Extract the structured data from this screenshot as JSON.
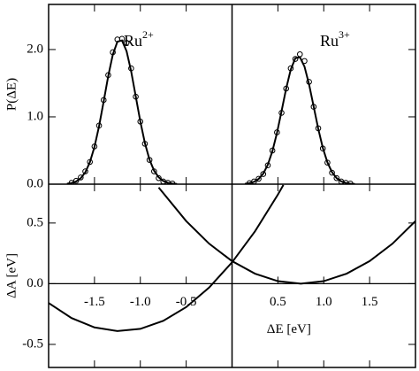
{
  "chart_data": [
    {
      "type": "line",
      "ylabel": "P(ΔE)",
      "color": "#000",
      "xlim": [
        -2,
        2
      ],
      "ylim": [
        0,
        2.67
      ],
      "yticks": [
        {
          "value": 0,
          "label": "0.0"
        },
        {
          "value": 1,
          "label": "1.0"
        },
        {
          "value": 2,
          "label": "2.0"
        }
      ],
      "annotations": [
        {
          "text": "Ru",
          "superscript": "2+"
        },
        {
          "text": "Ru",
          "superscript": "3+"
        }
      ],
      "series": [
        {
          "type": "line",
          "x": [
            -1.8,
            -1.75,
            -1.7,
            -1.65,
            -1.6,
            -1.55,
            -1.5,
            -1.45,
            -1.4,
            -1.35,
            -1.3,
            -1.25,
            -1.2,
            -1.15,
            -1.1,
            -1.05,
            -1.0,
            -0.95,
            -0.9,
            -0.85,
            -0.8,
            -0.75,
            -0.7,
            -0.65,
            -0.6
          ],
          "values": [
            0.006,
            0.017,
            0.04,
            0.088,
            0.176,
            0.327,
            0.554,
            0.861,
            1.227,
            1.606,
            1.925,
            2.117,
            2.135,
            1.976,
            1.676,
            1.304,
            0.931,
            0.609,
            0.365,
            0.201,
            0.102,
            0.047,
            0.02,
            0.008,
            0.003
          ]
        },
        {
          "type": "scatter",
          "x": [
            -1.75,
            -1.7,
            -1.65,
            -1.6,
            -1.55,
            -1.5,
            -1.45,
            -1.4,
            -1.35,
            -1.3,
            -1.25,
            -1.2,
            -1.15,
            -1.1,
            -1.05,
            -1.0,
            -0.95,
            -0.9,
            -0.85,
            -0.8,
            -0.75,
            -0.7,
            -0.65
          ],
          "values": [
            0.02,
            0.05,
            0.1,
            0.19,
            0.33,
            0.56,
            0.87,
            1.25,
            1.62,
            1.96,
            2.15,
            2.16,
            2.1,
            1.72,
            1.3,
            0.93,
            0.6,
            0.36,
            0.19,
            0.09,
            0.04,
            0.02,
            0.01
          ]
        },
        {
          "type": "line",
          "x": [
            0.14,
            0.19,
            0.24,
            0.29,
            0.34,
            0.39,
            0.44,
            0.49,
            0.54,
            0.59,
            0.64,
            0.69,
            0.74,
            0.79,
            0.84,
            0.89,
            0.94,
            0.99,
            1.04,
            1.09,
            1.14,
            1.19,
            1.24,
            1.29,
            1.34
          ],
          "values": [
            0.005,
            0.015,
            0.035,
            0.078,
            0.156,
            0.289,
            0.49,
            0.761,
            1.085,
            1.42,
            1.702,
            1.871,
            1.887,
            1.747,
            1.482,
            1.153,
            0.823,
            0.538,
            0.323,
            0.178,
            0.09,
            0.042,
            0.018,
            0.007,
            0.003
          ]
        },
        {
          "type": "scatter",
          "x": [
            0.19,
            0.24,
            0.29,
            0.34,
            0.39,
            0.44,
            0.49,
            0.54,
            0.59,
            0.64,
            0.69,
            0.74,
            0.79,
            0.84,
            0.89,
            0.94,
            0.99,
            1.04,
            1.09,
            1.14,
            1.19,
            1.24,
            1.29
          ],
          "values": [
            0.015,
            0.04,
            0.08,
            0.15,
            0.28,
            0.5,
            0.77,
            1.06,
            1.42,
            1.72,
            1.86,
            1.93,
            1.83,
            1.52,
            1.15,
            0.83,
            0.53,
            0.32,
            0.17,
            0.09,
            0.04,
            0.02,
            0.01
          ]
        }
      ]
    },
    {
      "type": "line",
      "xlabel": "ΔE [eV]",
      "ylabel": "ΔA [eV]",
      "color": "#000",
      "xlim": [
        -2,
        2
      ],
      "ylim": [
        -0.69,
        0.82
      ],
      "xticks": [
        -1.5,
        {
          "value": -1,
          "label": "-1.0"
        },
        -0.5,
        0.5,
        {
          "value": 1,
          "label": "1.0"
        },
        1.5
      ],
      "yticks": [
        -0.5,
        {
          "value": 0,
          "label": "0.0"
        },
        0.5
      ],
      "series": [
        {
          "type": "line",
          "x": [
            -2,
            -1.75,
            -1.5,
            -1.25,
            -1,
            -0.75,
            -0.5,
            -0.25,
            0,
            0.25,
            0.5,
            0.56
          ],
          "values": [
            -0.159,
            -0.283,
            -0.36,
            -0.39,
            -0.372,
            -0.306,
            -0.193,
            -0.032,
            0.176,
            0.431,
            0.734,
            0.814
          ]
        },
        {
          "type": "line",
          "x": [
            -0.8,
            -0.5,
            -0.25,
            0,
            0.25,
            0.5,
            0.75,
            1,
            1.25,
            1.5,
            1.75,
            2
          ],
          "values": [
            0.793,
            0.516,
            0.33,
            0.186,
            0.083,
            0.021,
            0,
            0.021,
            0.083,
            0.186,
            0.33,
            0.516
          ]
        }
      ]
    }
  ]
}
